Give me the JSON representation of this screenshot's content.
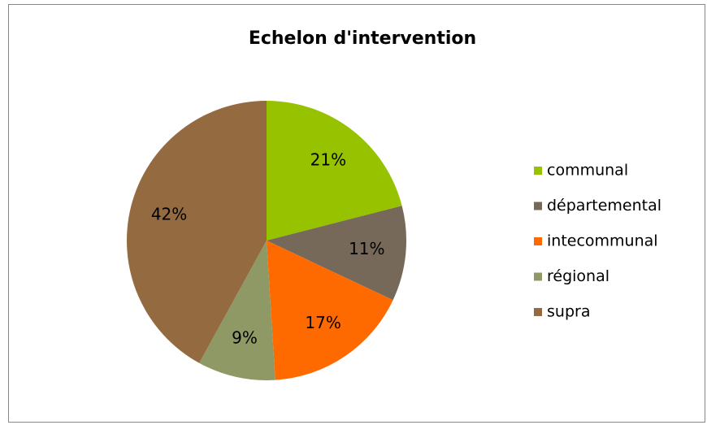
{
  "chart_data": {
    "type": "pie",
    "title": "Echelon d'intervention",
    "categories": [
      "communal",
      "départemental",
      "intecommunal",
      "régional",
      "supra"
    ],
    "values": [
      21,
      11,
      17,
      9,
      42
    ],
    "value_labels": [
      "21%",
      "11%",
      "17%",
      "9%",
      "42%"
    ],
    "colors": [
      "#97c200",
      "#76695a",
      "#ff6a00",
      "#8f9966",
      "#946a41"
    ],
    "legend": "right"
  }
}
